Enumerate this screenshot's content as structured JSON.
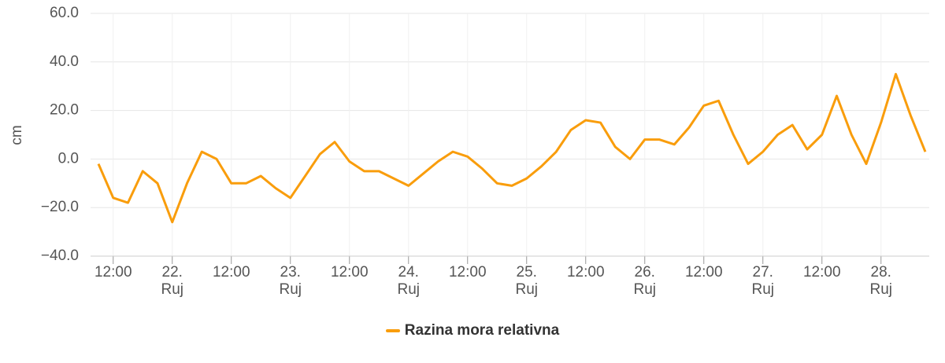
{
  "chart_data": {
    "type": "line",
    "y_label": "cm",
    "x": [
      "21. Ruj 09:00",
      "21. Ruj 12:00",
      "21. Ruj 15:00",
      "21. Ruj 18:00",
      "21. Ruj 21:00",
      "22. Ruj 00:00",
      "22. Ruj 03:00",
      "22. Ruj 06:00",
      "22. Ruj 09:00",
      "22. Ruj 12:00",
      "22. Ruj 15:00",
      "22. Ruj 18:00",
      "22. Ruj 21:00",
      "23. Ruj 00:00",
      "23. Ruj 03:00",
      "23. Ruj 06:00",
      "23. Ruj 09:00",
      "23. Ruj 12:00",
      "23. Ruj 15:00",
      "23. Ruj 18:00",
      "23. Ruj 21:00",
      "24. Ruj 00:00",
      "24. Ruj 03:00",
      "24. Ruj 06:00",
      "24. Ruj 09:00",
      "24. Ruj 12:00",
      "24. Ruj 15:00",
      "24. Ruj 18:00",
      "24. Ruj 21:00",
      "25. Ruj 00:00",
      "25. Ruj 03:00",
      "25. Ruj 06:00",
      "25. Ruj 09:00",
      "25. Ruj 12:00",
      "25. Ruj 15:00",
      "25. Ruj 18:00",
      "25. Ruj 21:00",
      "26. Ruj 00:00",
      "26. Ruj 03:00",
      "26. Ruj 06:00",
      "26. Ruj 09:00",
      "26. Ruj 12:00",
      "26. Ruj 15:00",
      "26. Ruj 18:00",
      "26. Ruj 21:00",
      "27. Ruj 00:00",
      "27. Ruj 03:00",
      "27. Ruj 06:00",
      "27. Ruj 09:00",
      "27. Ruj 12:00",
      "27. Ruj 15:00",
      "27. Ruj 18:00",
      "27. Ruj 21:00",
      "28. Ruj 00:00",
      "28. Ruj 03:00",
      "28. Ruj 06:00",
      "28. Ruj 09:00"
    ],
    "series": [
      {
        "name": "Razina mora relativna",
        "color": "#f99d0c",
        "values": [
          -2,
          -16,
          -18,
          -5,
          -10,
          -26,
          -10,
          3,
          0,
          -10,
          -10,
          -7,
          -12,
          -16,
          -7,
          2,
          7,
          -1,
          -5,
          -5,
          -8,
          -11,
          -6,
          -1,
          3,
          1,
          -4,
          -10,
          -11,
          -8,
          -3,
          3,
          12,
          16,
          15,
          5,
          0,
          8,
          8,
          6,
          13,
          22,
          24,
          10,
          -2,
          3,
          10,
          14,
          4,
          10,
          26,
          10,
          -2,
          15,
          35,
          18,
          3
        ]
      }
    ],
    "ylim": [
      -40,
      60
    ],
    "yticks": [
      {
        "value": -40,
        "label": "−40.0"
      },
      {
        "value": -20,
        "label": "−20.0"
      },
      {
        "value": 0,
        "label": "0.0"
      },
      {
        "value": 20,
        "label": "20.0"
      },
      {
        "value": 40,
        "label": "40.0"
      },
      {
        "value": 60,
        "label": "60.0"
      }
    ],
    "xticks": [
      {
        "value": "21. Ruj 12:00",
        "label": "12:00"
      },
      {
        "value": "22. Ruj 00:00",
        "label": "22.\nRuj"
      },
      {
        "value": "22. Ruj 12:00",
        "label": "12:00"
      },
      {
        "value": "23. Ruj 00:00",
        "label": "23.\nRuj"
      },
      {
        "value": "23. Ruj 12:00",
        "label": "12:00"
      },
      {
        "value": "24. Ruj 00:00",
        "label": "24.\nRuj"
      },
      {
        "value": "24. Ruj 12:00",
        "label": "12:00"
      },
      {
        "value": "25. Ruj 00:00",
        "label": "25.\nRuj"
      },
      {
        "value": "25. Ruj 12:00",
        "label": "12:00"
      },
      {
        "value": "26. Ruj 00:00",
        "label": "26.\nRuj"
      },
      {
        "value": "26. Ruj 12:00",
        "label": "12:00"
      },
      {
        "value": "27. Ruj 00:00",
        "label": "27.\nRuj"
      },
      {
        "value": "27. Ruj 12:00",
        "label": "12:00"
      },
      {
        "value": "28. Ruj 00:00",
        "label": "28.\nRuj"
      }
    ],
    "grid": true
  }
}
